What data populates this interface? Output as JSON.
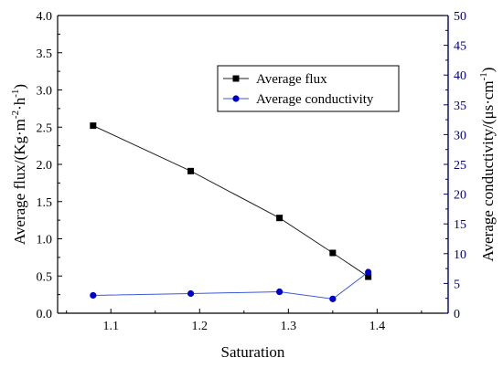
{
  "chart_data": {
    "type": "line",
    "xlabel": "Saturation",
    "ylabel_left": {
      "main": "Average flux/(Kg·m",
      "sup1": "-2",
      "mid": "·h",
      "sup2": "-1",
      "end": ")"
    },
    "ylabel_right": {
      "main": "Average conductivity/(μs·cm",
      "sup1": "-1",
      "end": ")"
    },
    "xlim": [
      1.04,
      1.48
    ],
    "ylim_left": [
      0.0,
      4.0
    ],
    "ylim_right": [
      0,
      50
    ],
    "xticks": [
      "1.1",
      "1.2",
      "1.3",
      "1.4"
    ],
    "yticks_left": [
      "0.0",
      "0.5",
      "1.0",
      "1.5",
      "2.0",
      "2.5",
      "3.0",
      "3.5",
      "4.0"
    ],
    "yticks_right": [
      "0",
      "5",
      "10",
      "15",
      "20",
      "25",
      "30",
      "35",
      "40",
      "45",
      "50"
    ],
    "legend_position": "top-right",
    "series": [
      {
        "name": "Average flux",
        "axis": "left",
        "marker": "square",
        "color": "#000000",
        "x": [
          1.08,
          1.19,
          1.29,
          1.35,
          1.39
        ],
        "y": [
          2.52,
          1.91,
          1.28,
          0.81,
          0.49
        ]
      },
      {
        "name": "Average conductivity",
        "axis": "right",
        "marker": "circle",
        "color": "#0000cc",
        "x": [
          1.08,
          1.19,
          1.29,
          1.35,
          1.39
        ],
        "y": [
          3.0,
          3.3,
          3.6,
          2.4,
          6.9
        ]
      }
    ],
    "colors": {
      "left_axis": "#000000",
      "right_axis": "#000080"
    }
  }
}
